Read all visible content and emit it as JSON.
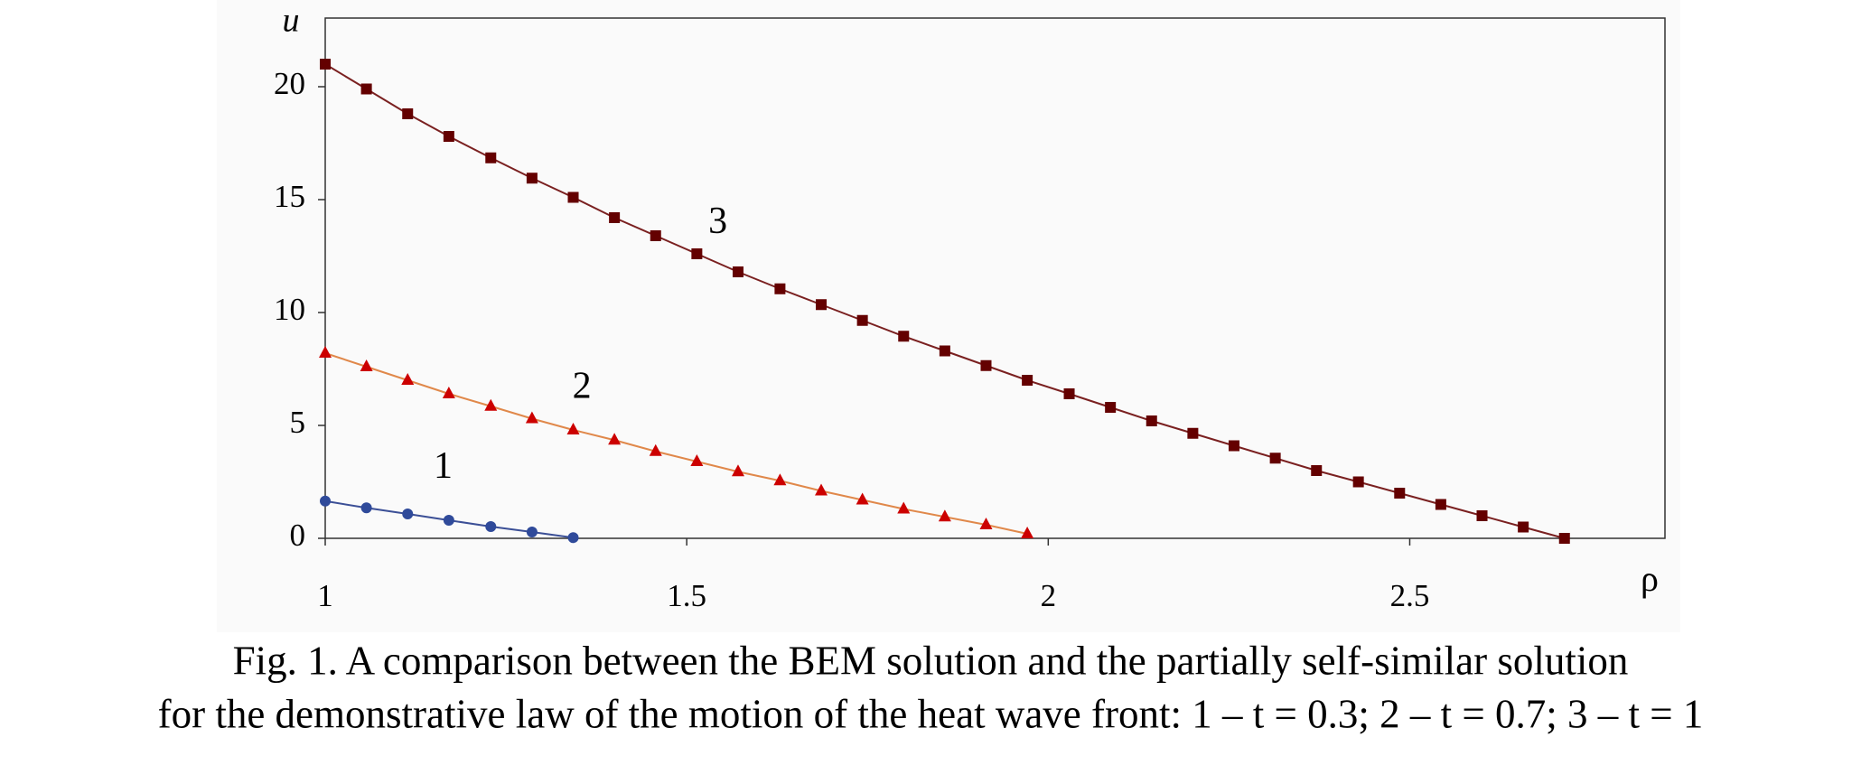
{
  "chart_data": {
    "type": "line",
    "xlabel": "ρ",
    "ylabel": "u",
    "xlim": [
      1,
      2.853
    ],
    "ylim": [
      0,
      23.04
    ],
    "xticks": [
      1,
      1.5,
      2,
      2.5
    ],
    "yticks": [
      0,
      5,
      10,
      15,
      20
    ],
    "annotations": [
      {
        "text": "1",
        "x": 1.163,
        "y": 3.06
      },
      {
        "text": "2",
        "x": 1.355,
        "y": 6.6
      },
      {
        "text": "3",
        "x": 1.543,
        "y": 13.9
      }
    ],
    "caption": [
      "Fig. 1. A comparison between the BEM solution and the partially self-similar solution",
      "for the demonstrative law of the motion of the heat wave front: 1 – t = 0.3; 2 – t = 0.7; 3 – t = 1"
    ],
    "series": [
      {
        "marker": "circle",
        "color": "#2f4a9a",
        "line_color": "#3b4f96",
        "x": [
          1,
          1.057,
          1.114,
          1.171,
          1.229,
          1.286,
          1.343
        ],
        "values": [
          1.65,
          1.35,
          1.08,
          0.8,
          0.52,
          0.28,
          0.03
        ]
      },
      {
        "marker": "triangle",
        "color": "#cc0000",
        "line_color": "#e0884a",
        "x": [
          1,
          1.057,
          1.114,
          1.171,
          1.229,
          1.286,
          1.343,
          1.4,
          1.457,
          1.514,
          1.571,
          1.629,
          1.686,
          1.743,
          1.8,
          1.857,
          1.914,
          1.971
        ],
        "values": [
          8.2,
          7.6,
          7.0,
          6.4,
          5.85,
          5.3,
          4.8,
          4.35,
          3.85,
          3.4,
          2.95,
          2.55,
          2.1,
          1.7,
          1.3,
          0.95,
          0.6,
          0.2
        ]
      },
      {
        "marker": "square",
        "color": "#640000",
        "line_color": "#7a2020",
        "x": [
          1,
          1.057,
          1.114,
          1.171,
          1.229,
          1.286,
          1.343,
          1.4,
          1.457,
          1.514,
          1.571,
          1.629,
          1.686,
          1.743,
          1.8,
          1.857,
          1.914,
          1.971,
          2.029,
          2.086,
          2.143,
          2.2,
          2.257,
          2.314,
          2.371,
          2.429,
          2.486,
          2.543,
          2.6,
          2.657,
          2.714
        ],
        "values": [
          21.0,
          19.9,
          18.8,
          17.8,
          16.85,
          15.95,
          15.1,
          14.2,
          13.4,
          12.6,
          11.8,
          11.05,
          10.35,
          9.65,
          8.95,
          8.3,
          7.65,
          7.0,
          6.4,
          5.8,
          5.2,
          4.65,
          4.1,
          3.55,
          3.0,
          2.5,
          2.0,
          1.5,
          1.0,
          0.5,
          0.0
        ]
      }
    ]
  }
}
